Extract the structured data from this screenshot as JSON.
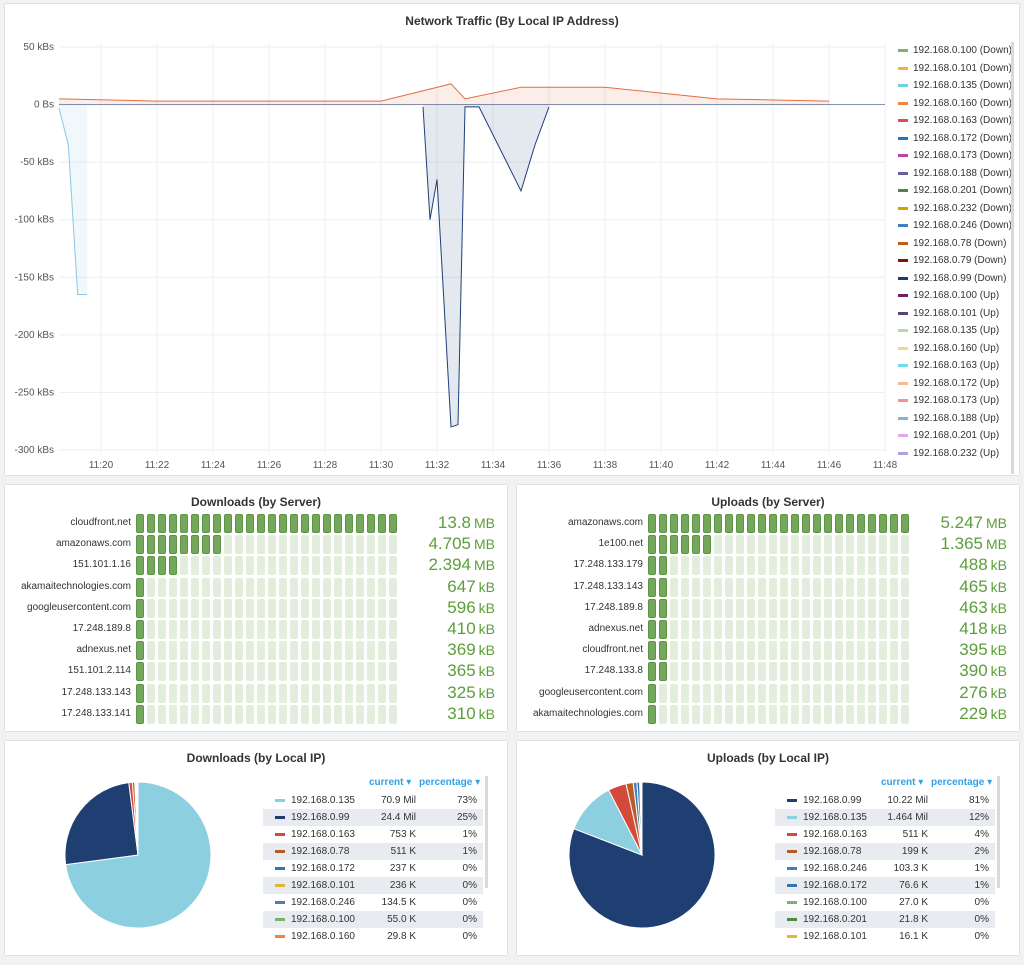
{
  "traffic": {
    "title": "Network Traffic (By Local IP Address)",
    "chart_data": {
      "type": "area",
      "title": "Network Traffic (By Local IP Address)",
      "y_ticks": [
        "50 kBs",
        "0 Bs",
        "-50 kBs",
        "-100 kBs",
        "-150 kBs",
        "-200 kBs",
        "-250 kBs",
        "-300 kBs"
      ],
      "x_ticks": [
        "11:20",
        "11:22",
        "11:24",
        "11:26",
        "11:28",
        "11:30",
        "11:32",
        "11:34",
        "11:36",
        "11:38",
        "11:40",
        "11:42",
        "11:44",
        "11:46",
        "11:48"
      ],
      "ylim": [
        -300,
        50
      ],
      "y_unit": "kBs",
      "grid": true,
      "legend_position": "right",
      "series": [
        {
          "name": "192.168.0.135 (Down)",
          "color": "#8ac7e3",
          "x": [
            "11:18:30",
            "11:18:50",
            "11:19:10",
            "11:19:30"
          ],
          "y": [
            -3,
            -35,
            -165,
            -165
          ]
        },
        {
          "name": "192.168.0.99 (Down)",
          "color": "#1f3f7a",
          "x": [
            "11:31:30",
            "11:31:45",
            "11:32:00",
            "11:32:30",
            "11:32:45",
            "11:33:00",
            "11:33:30",
            "11:35:00",
            "11:35:30",
            "11:36:00"
          ],
          "y": [
            -2,
            -100,
            -65,
            -280,
            -278,
            -2,
            -2,
            -75,
            -35,
            -2
          ]
        },
        {
          "name": "192.168.0.163 (Up)",
          "color": "#e26e3f",
          "x": [
            "11:18:30",
            "11:22:00",
            "11:26:00",
            "11:30:00",
            "11:32:30",
            "11:33:00",
            "11:35:00",
            "11:38:00",
            "11:42:00",
            "11:46:00"
          ],
          "y": [
            5,
            3,
            3,
            3,
            18,
            5,
            15,
            15,
            5,
            3
          ]
        }
      ]
    },
    "legend": [
      {
        "label": "192.168.0.100 (Down)",
        "color": "#7eb26d"
      },
      {
        "label": "192.168.0.101 (Down)",
        "color": "#eab839"
      },
      {
        "label": "192.168.0.135 (Down)",
        "color": "#6ed0e0"
      },
      {
        "label": "192.168.0.160 (Down)",
        "color": "#ef843c"
      },
      {
        "label": "192.168.0.163 (Down)",
        "color": "#e24d42"
      },
      {
        "label": "192.168.0.172 (Down)",
        "color": "#1f78c1"
      },
      {
        "label": "192.168.0.173 (Down)",
        "color": "#ba43a9"
      },
      {
        "label": "192.168.0.188 (Down)",
        "color": "#705da0"
      },
      {
        "label": "192.168.0.201 (Down)",
        "color": "#508642"
      },
      {
        "label": "192.168.0.232 (Down)",
        "color": "#cca300"
      },
      {
        "label": "192.168.0.246 (Down)",
        "color": "#447ebc"
      },
      {
        "label": "192.168.0.78 (Down)",
        "color": "#c15c17"
      },
      {
        "label": "192.168.0.79 (Down)",
        "color": "#890f02"
      },
      {
        "label": "192.168.0.99 (Down)",
        "color": "#0a437c"
      },
      {
        "label": "192.168.0.100 (Up)",
        "color": "#6d1f62"
      },
      {
        "label": "192.168.0.101 (Up)",
        "color": "#584477"
      },
      {
        "label": "192.168.0.135 (Up)",
        "color": "#b7dbab"
      },
      {
        "label": "192.168.0.160 (Up)",
        "color": "#f4d598"
      },
      {
        "label": "192.168.0.163 (Up)",
        "color": "#70dbed"
      },
      {
        "label": "192.168.0.172 (Up)",
        "color": "#f9ba8f"
      },
      {
        "label": "192.168.0.173 (Up)",
        "color": "#f29191"
      },
      {
        "label": "192.168.0.188 (Up)",
        "color": "#82b5d8"
      },
      {
        "label": "192.168.0.201 (Up)",
        "color": "#e5a8e2"
      },
      {
        "label": "192.168.0.232 (Up)",
        "color": "#aea2e0"
      }
    ]
  },
  "downloads_server": {
    "title": "Downloads (by Server)",
    "chart_data": {
      "type": "bar",
      "categories": [
        "cloudfront.net",
        "amazonaws.com",
        "151.101.1.16",
        "akamaitechnologies.com",
        "googleusercontent.com",
        "17.248.189.8",
        "adnexus.net",
        "151.101.2.114",
        "17.248.133.143",
        "17.248.133.141"
      ],
      "values_kb": [
        13800,
        4705,
        2394,
        647,
        596,
        410,
        369,
        365,
        325,
        310
      ]
    },
    "rows": [
      {
        "label": "cloudfront.net",
        "num": "13.8",
        "unit": "MB",
        "fill": 1.0
      },
      {
        "label": "amazonaws.com",
        "num": "4.705",
        "unit": "MB",
        "fill": 0.341
      },
      {
        "label": "151.101.1.16",
        "num": "2.394",
        "unit": "MB",
        "fill": 0.173
      },
      {
        "label": "akamaitechnologies.com",
        "num": "647",
        "unit": "kB",
        "fill": 0.047
      },
      {
        "label": "googleusercontent.com",
        "num": "596",
        "unit": "kB",
        "fill": 0.043
      },
      {
        "label": "17.248.189.8",
        "num": "410",
        "unit": "kB",
        "fill": 0.03
      },
      {
        "label": "adnexus.net",
        "num": "369",
        "unit": "kB",
        "fill": 0.027
      },
      {
        "label": "151.101.2.114",
        "num": "365",
        "unit": "kB",
        "fill": 0.026
      },
      {
        "label": "17.248.133.143",
        "num": "325",
        "unit": "kB",
        "fill": 0.024
      },
      {
        "label": "17.248.133.141",
        "num": "310",
        "unit": "kB",
        "fill": 0.022
      }
    ]
  },
  "uploads_server": {
    "title": "Uploads (by Server)",
    "chart_data": {
      "type": "bar",
      "categories": [
        "amazonaws.com",
        "1e100.net",
        "17.248.133.179",
        "17.248.133.143",
        "17.248.189.8",
        "adnexus.net",
        "cloudfront.net",
        "17.248.133.8",
        "googleusercontent.com",
        "akamaitechnologies.com"
      ],
      "values_kb": [
        5247,
        1365,
        488,
        465,
        463,
        418,
        395,
        390,
        276,
        229
      ]
    },
    "rows": [
      {
        "label": "amazonaws.com",
        "num": "5.247",
        "unit": "MB",
        "fill": 1.0
      },
      {
        "label": "1e100.net",
        "num": "1.365",
        "unit": "MB",
        "fill": 0.26
      },
      {
        "label": "17.248.133.179",
        "num": "488",
        "unit": "kB",
        "fill": 0.093
      },
      {
        "label": "17.248.133.143",
        "num": "465",
        "unit": "kB",
        "fill": 0.089
      },
      {
        "label": "17.248.189.8",
        "num": "463",
        "unit": "kB",
        "fill": 0.088
      },
      {
        "label": "adnexus.net",
        "num": "418",
        "unit": "kB",
        "fill": 0.08
      },
      {
        "label": "cloudfront.net",
        "num": "395",
        "unit": "kB",
        "fill": 0.075
      },
      {
        "label": "17.248.133.8",
        "num": "390",
        "unit": "kB",
        "fill": 0.074
      },
      {
        "label": "googleusercontent.com",
        "num": "276",
        "unit": "kB",
        "fill": 0.053
      },
      {
        "label": "akamaitechnologies.com",
        "num": "229",
        "unit": "kB",
        "fill": 0.044
      }
    ]
  },
  "downloads_ip": {
    "title": "Downloads (by Local IP)",
    "col_current": "current",
    "col_percentage": "percentage",
    "chart_data": {
      "type": "pie",
      "slices": [
        {
          "label": "192.168.0.135",
          "value": 70.9,
          "color": "#8ccfe0"
        },
        {
          "label": "192.168.0.99",
          "value": 24.4,
          "color": "#1f3f73"
        },
        {
          "label": "192.168.0.163",
          "value": 0.753,
          "color": "#d44a3a"
        },
        {
          "label": "192.168.0.78",
          "value": 0.511,
          "color": "#b85c2a"
        },
        {
          "label": "192.168.0.172",
          "value": 0.237,
          "color": "#2f75b5"
        },
        {
          "label": "192.168.0.101",
          "value": 0.236,
          "color": "#e5b53a"
        },
        {
          "label": "192.168.0.246",
          "value": 0.1345,
          "color": "#4a7fb5"
        },
        {
          "label": "192.168.0.100",
          "value": 0.055,
          "color": "#7bb26d"
        },
        {
          "label": "192.168.0.160",
          "value": 0.0298,
          "color": "#ef843c"
        }
      ]
    },
    "rows": [
      {
        "ip": "192.168.0.135",
        "current": "70.9 Mil",
        "pct": "73%",
        "color": "#8ccfe0"
      },
      {
        "ip": "192.168.0.99",
        "current": "24.4 Mil",
        "pct": "25%",
        "color": "#1f3f73"
      },
      {
        "ip": "192.168.0.163",
        "current": "753 K",
        "pct": "1%",
        "color": "#d44a3a"
      },
      {
        "ip": "192.168.0.78",
        "current": "511 K",
        "pct": "1%",
        "color": "#b85c2a"
      },
      {
        "ip": "192.168.0.172",
        "current": "237 K",
        "pct": "0%",
        "color": "#2f75b5"
      },
      {
        "ip": "192.168.0.101",
        "current": "236 K",
        "pct": "0%",
        "color": "#e5b53a"
      },
      {
        "ip": "192.168.0.246",
        "current": "134.5 K",
        "pct": "0%",
        "color": "#4a7fb5"
      },
      {
        "ip": "192.168.0.100",
        "current": "55.0 K",
        "pct": "0%",
        "color": "#7bb26d"
      },
      {
        "ip": "192.168.0.160",
        "current": "29.8 K",
        "pct": "0%",
        "color": "#ef843c"
      }
    ]
  },
  "uploads_ip": {
    "title": "Uploads (by Local IP)",
    "col_current": "current",
    "col_percentage": "percentage",
    "chart_data": {
      "type": "pie",
      "slices": [
        {
          "label": "192.168.0.99",
          "value": 10.22,
          "color": "#1f3f73"
        },
        {
          "label": "192.168.0.135",
          "value": 1.464,
          "color": "#8ccfe0"
        },
        {
          "label": "192.168.0.163",
          "value": 0.511,
          "color": "#d44a3a"
        },
        {
          "label": "192.168.0.78",
          "value": 0.199,
          "color": "#b85c2a"
        },
        {
          "label": "192.168.0.246",
          "value": 0.1033,
          "color": "#4a7fb5"
        },
        {
          "label": "192.168.0.172",
          "value": 0.0766,
          "color": "#2f75b5"
        },
        {
          "label": "192.168.0.100",
          "value": 0.027,
          "color": "#7bb26d"
        },
        {
          "label": "192.168.0.201",
          "value": 0.0218,
          "color": "#508642"
        },
        {
          "label": "192.168.0.101",
          "value": 0.0161,
          "color": "#e5b53a"
        }
      ]
    },
    "rows": [
      {
        "ip": "192.168.0.99",
        "current": "10.22 Mil",
        "pct": "81%",
        "color": "#1f3f73"
      },
      {
        "ip": "192.168.0.135",
        "current": "1.464 Mil",
        "pct": "12%",
        "color": "#8ccfe0"
      },
      {
        "ip": "192.168.0.163",
        "current": "511 K",
        "pct": "4%",
        "color": "#d44a3a"
      },
      {
        "ip": "192.168.0.78",
        "current": "199 K",
        "pct": "2%",
        "color": "#b85c2a"
      },
      {
        "ip": "192.168.0.246",
        "current": "103.3 K",
        "pct": "1%",
        "color": "#4a7fb5"
      },
      {
        "ip": "192.168.0.172",
        "current": "76.6 K",
        "pct": "1%",
        "color": "#2f75b5"
      },
      {
        "ip": "192.168.0.100",
        "current": "27.0 K",
        "pct": "0%",
        "color": "#7bb26d"
      },
      {
        "ip": "192.168.0.201",
        "current": "21.8 K",
        "pct": "0%",
        "color": "#508642"
      },
      {
        "ip": "192.168.0.101",
        "current": "16.1 K",
        "pct": "0%",
        "color": "#e5b53a"
      }
    ]
  }
}
